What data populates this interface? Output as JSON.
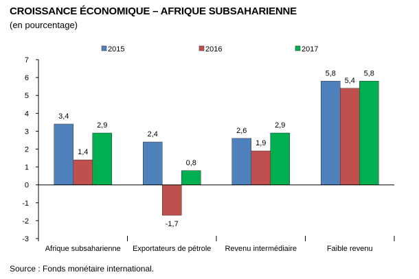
{
  "header": {
    "title": "CROISSANCE ÉCONOMIQUE – AFRIQUE SUBSAHARIENNE",
    "subtitle": "(en pourcentage)"
  },
  "footer": {
    "source": "Source :  Fonds monétaire international."
  },
  "chart_data": {
    "type": "bar",
    "categories": [
      "Afrique subsaharienne",
      "Exportateurs de pétrole",
      "Revenu intermédiaire",
      "Faible revenu"
    ],
    "series": [
      {
        "name": "2015",
        "values": [
          3.4,
          2.4,
          2.6,
          5.8
        ],
        "labels": [
          "3,4",
          "2,4",
          "2,6",
          "5,8"
        ],
        "color": "#4f81bd"
      },
      {
        "name": "2016",
        "values": [
          1.4,
          -1.7,
          1.9,
          5.4
        ],
        "labels": [
          "1,4",
          "-1,7",
          "1,9",
          "5,4"
        ],
        "color": "#c0504d"
      },
      {
        "name": "2017",
        "values": [
          2.9,
          0.8,
          2.9,
          5.8
        ],
        "labels": [
          "2,9",
          "0,8",
          "2,9",
          "5,8"
        ],
        "color": "#00b050"
      }
    ],
    "ylim": [
      -3,
      7
    ],
    "yticks": [
      "-3",
      "-2",
      "-1",
      "0",
      "1",
      "2",
      "3",
      "4",
      "5",
      "6",
      "7"
    ],
    "grid": false,
    "legend": "top"
  }
}
